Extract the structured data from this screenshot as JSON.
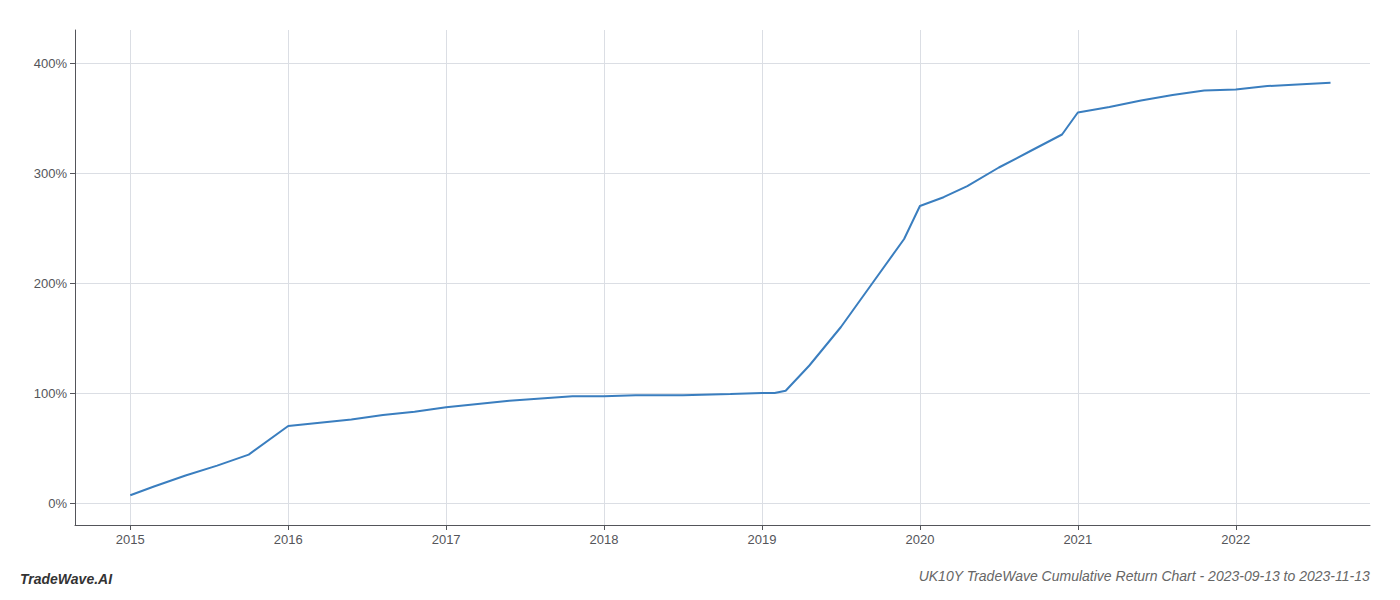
{
  "chart_data": {
    "type": "line",
    "title": "UK10Y TradeWave Cumulative Return Chart - 2023-09-13 to 2023-11-13",
    "annotations": [
      "TradeWave.AI"
    ],
    "x": [
      2015.0,
      2015.15,
      2015.35,
      2015.55,
      2015.75,
      2016.0,
      2016.2,
      2016.4,
      2016.6,
      2016.8,
      2017.0,
      2017.2,
      2017.4,
      2017.6,
      2017.8,
      2018.0,
      2018.2,
      2018.5,
      2018.8,
      2019.0,
      2019.08,
      2019.15,
      2019.3,
      2019.5,
      2019.7,
      2019.9,
      2020.0,
      2020.15,
      2020.3,
      2020.5,
      2020.7,
      2020.9,
      2021.0,
      2021.2,
      2021.4,
      2021.6,
      2021.8,
      2022.0,
      2022.2,
      2022.45,
      2022.6
    ],
    "values": [
      7,
      15,
      25,
      34,
      44,
      70,
      73,
      76,
      80,
      83,
      87,
      90,
      93,
      95,
      97,
      97,
      98,
      98,
      99,
      100,
      100,
      102,
      125,
      160,
      200,
      240,
      270,
      278,
      288,
      305,
      320,
      335,
      355,
      360,
      366,
      371,
      375,
      376,
      379,
      381,
      382
    ],
    "color": "#3a7ebf",
    "xlim": [
      2014.65,
      2022.85
    ],
    "xticks": [
      2015,
      2016,
      2017,
      2018,
      2019,
      2020,
      2021,
      2022
    ],
    "ylim": [
      -20,
      430
    ],
    "yticks": [
      {
        "value": 0,
        "label": "0%"
      },
      {
        "value": 100,
        "label": "100%"
      },
      {
        "value": 200,
        "label": "200%"
      },
      {
        "value": 300,
        "label": "300%"
      },
      {
        "value": 400,
        "label": "400%"
      }
    ],
    "grid": true
  }
}
